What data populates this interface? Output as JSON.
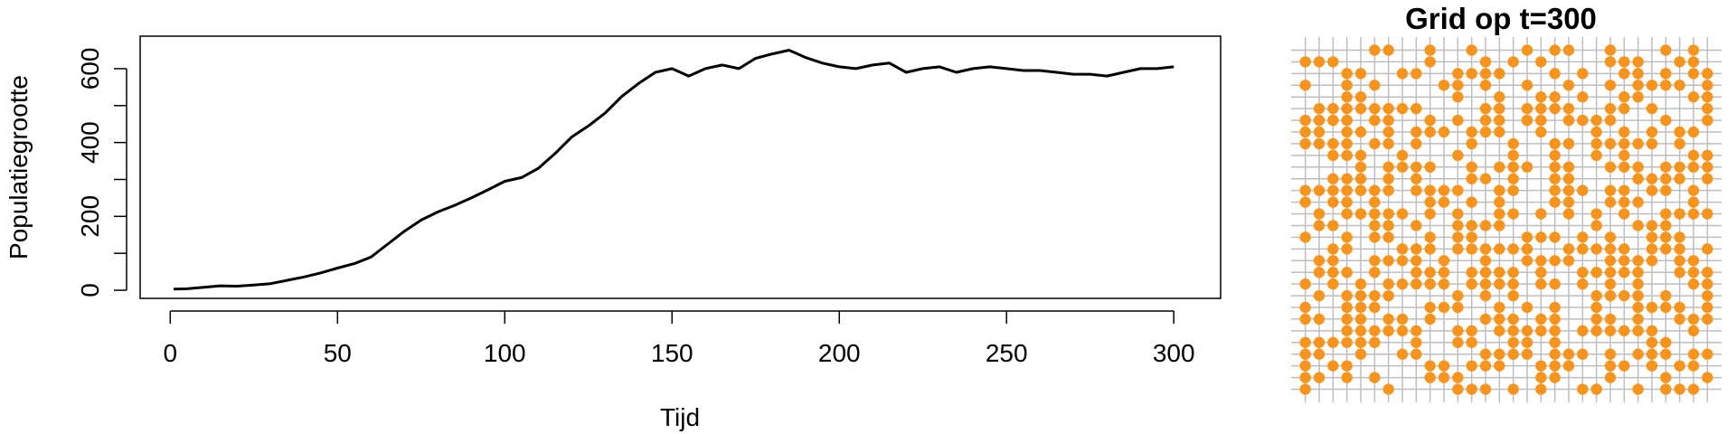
{
  "chart_data": [
    {
      "type": "line",
      "title": "",
      "xlabel": "Tijd",
      "ylabel": "Populatiegrootte",
      "xlim": [
        -9,
        314
      ],
      "ylim": [
        -22,
        688
      ],
      "xticks": [
        0,
        50,
        100,
        150,
        200,
        250,
        300
      ],
      "yticks": [
        0,
        200,
        400,
        600
      ],
      "x_tick_labels": [
        "0",
        "50",
        "100",
        "150",
        "200",
        "250",
        "300"
      ],
      "y_tick_labels": [
        "0",
        "200",
        "400",
        "600"
      ],
      "grid": false,
      "legend": "none",
      "line_color": "#000000",
      "series": [
        {
          "x": [
            1,
            5,
            10,
            15,
            20,
            25,
            30,
            35,
            40,
            45,
            50,
            55,
            60,
            65,
            70,
            75,
            80,
            85,
            90,
            95,
            100,
            105,
            110,
            115,
            120,
            125,
            130,
            135,
            140,
            145,
            150,
            155,
            160,
            165,
            170,
            175,
            180,
            185,
            190,
            195,
            200,
            205,
            210,
            215,
            220,
            225,
            230,
            235,
            240,
            245,
            250,
            255,
            260,
            265,
            270,
            275,
            280,
            285,
            290,
            295,
            300
          ],
          "y": [
            3,
            4,
            8,
            12,
            11,
            14,
            18,
            27,
            36,
            47,
            60,
            72,
            90,
            125,
            160,
            190,
            212,
            230,
            250,
            272,
            295,
            305,
            330,
            370,
            415,
            445,
            480,
            525,
            560,
            590,
            600,
            580,
            600,
            610,
            600,
            628,
            640,
            650,
            630,
            615,
            605,
            600,
            610,
            615,
            590,
            600,
            605,
            590,
            600,
            605,
            600,
            595,
            595,
            590,
            585,
            585,
            580,
            590,
            600,
            600,
            605
          ]
        }
      ]
    },
    {
      "type": "heatmap",
      "title": "Grid op t=300",
      "rows": 30,
      "cols": 30,
      "occupied_color": "#F7941D",
      "grid_line_color": "#BEBEBE",
      "grid": true,
      "cells": [
        "000001100100100010110010001010",
        "111000000100010101000011100110",
        "000110011001111000101001101011",
        "100101000011010010010010111101",
        "000110000001001001101001100011",
        "011111111000011011110011010001",
        "111101100101011011011110001001",
        "110110101110111001000101010110",
        "111101101000100100110111110100",
        "001110010001000100100101000011",
        "000010111100101110110011101111",
        "001110101000110100110000111101",
        "111111101111001100111011011010",
        "101101000110101000110011100010",
        "010111110101001101010101001111",
        "011001101001111000000100111000",
        "100101100101100011101010011100",
        "001100011101111110011111011101",
        "011001111010010011110011110110",
        "011101001110111101001111100111",
        "101010111110111101101010100011",
        "010111100001010100000111101001",
        "100111000111001010100100111101",
        "110110110100011101100110100111",
        "000111111001101111101111110010",
        "111111001001100110100000011000",
        "110010011000011110111010111011",
        "101100000110111001110011010110",
        "110101000111000001100010001001",
        "100000100001110101001100101110"
      ]
    }
  ]
}
